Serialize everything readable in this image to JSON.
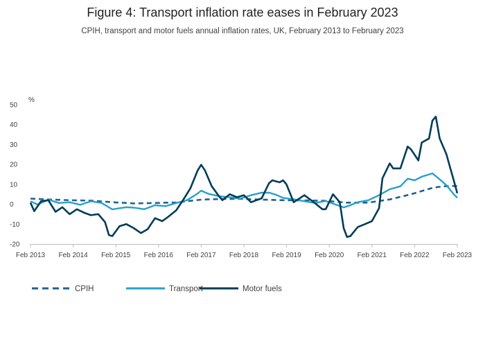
{
  "chart_data": {
    "type": "line",
    "title": "Figure 4: Transport inflation rate eases in February 2023",
    "subtitle": "CPIH, transport and motor fuels annual inflation rates, UK, February 2013 to February 2023",
    "ylabel": "%",
    "xlabel": "",
    "ylim": [
      -20,
      50
    ],
    "yticks": [
      -20,
      -10,
      0,
      10,
      20,
      30,
      40,
      50
    ],
    "xlim": [
      2013.083,
      2023.083
    ],
    "xticks": [
      {
        "value": 2013.083,
        "label": "Feb 2013"
      },
      {
        "value": 2014.083,
        "label": "Feb 2014"
      },
      {
        "value": 2015.083,
        "label": "Feb 2015"
      },
      {
        "value": 2016.083,
        "label": "Feb 2016"
      },
      {
        "value": 2017.083,
        "label": "Feb 2017"
      },
      {
        "value": 2018.083,
        "label": "Feb 2018"
      },
      {
        "value": 2019.083,
        "label": "Feb 2019"
      },
      {
        "value": 2020.083,
        "label": "Feb 2020"
      },
      {
        "value": 2021.083,
        "label": "Feb 2021"
      },
      {
        "value": 2022.083,
        "label": "Feb 2022"
      },
      {
        "value": 2023.083,
        "label": "Feb 2023"
      }
    ],
    "grid": false,
    "legend_position": "bottom-left",
    "series": [
      {
        "name": "CPIH",
        "color": "#206095",
        "dash": "dashed",
        "points": [
          [
            2013.083,
            2.8
          ],
          [
            2013.5,
            2.4
          ],
          [
            2014.0,
            2.0
          ],
          [
            2014.5,
            1.8
          ],
          [
            2015.0,
            1.0
          ],
          [
            2015.5,
            0.4
          ],
          [
            2016.0,
            0.6
          ],
          [
            2016.5,
            0.9
          ],
          [
            2017.083,
            2.3
          ],
          [
            2017.5,
            2.6
          ],
          [
            2018.0,
            2.7
          ],
          [
            2018.5,
            2.3
          ],
          [
            2019.0,
            2.0
          ],
          [
            2019.5,
            1.9
          ],
          [
            2020.0,
            1.7
          ],
          [
            2020.5,
            0.8
          ],
          [
            2021.0,
            0.8
          ],
          [
            2021.5,
            2.4
          ],
          [
            2022.0,
            5.0
          ],
          [
            2022.5,
            8.2
          ],
          [
            2022.75,
            9.0
          ],
          [
            2023.083,
            9.2
          ]
        ]
      },
      {
        "name": "Transport",
        "color": "#27a0cc",
        "dash": "solid",
        "points": [
          [
            2013.083,
            1.5
          ],
          [
            2013.25,
            -0.2
          ],
          [
            2013.5,
            2.3
          ],
          [
            2013.75,
            0.6
          ],
          [
            2014.0,
            1.0
          ],
          [
            2014.25,
            -0.3
          ],
          [
            2014.5,
            1.5
          ],
          [
            2014.75,
            0.6
          ],
          [
            2015.0,
            -2.6
          ],
          [
            2015.17,
            -2.0
          ],
          [
            2015.33,
            -1.5
          ],
          [
            2015.5,
            -1.7
          ],
          [
            2015.75,
            -2.5
          ],
          [
            2016.0,
            -0.5
          ],
          [
            2016.25,
            -1.0
          ],
          [
            2016.5,
            0.6
          ],
          [
            2016.75,
            2.0
          ],
          [
            2017.0,
            5.4
          ],
          [
            2017.083,
            6.8
          ],
          [
            2017.25,
            5.2
          ],
          [
            2017.5,
            4.0
          ],
          [
            2017.75,
            3.5
          ],
          [
            2018.0,
            2.8
          ],
          [
            2018.25,
            4.5
          ],
          [
            2018.5,
            5.8
          ],
          [
            2018.67,
            5.8
          ],
          [
            2018.83,
            4.8
          ],
          [
            2019.0,
            3.2
          ],
          [
            2019.25,
            2.5
          ],
          [
            2019.5,
            1.5
          ],
          [
            2019.75,
            0.6
          ],
          [
            2020.0,
            1.6
          ],
          [
            2020.25,
            -0.3
          ],
          [
            2020.42,
            -1.6
          ],
          [
            2020.58,
            -0.5
          ],
          [
            2020.75,
            1.0
          ],
          [
            2021.0,
            2.0
          ],
          [
            2021.25,
            4.5
          ],
          [
            2021.5,
            7.5
          ],
          [
            2021.75,
            9.0
          ],
          [
            2021.92,
            12.8
          ],
          [
            2022.083,
            12.0
          ],
          [
            2022.25,
            13.8
          ],
          [
            2022.5,
            15.5
          ],
          [
            2022.67,
            12.5
          ],
          [
            2022.83,
            9.5
          ],
          [
            2023.0,
            5.0
          ],
          [
            2023.083,
            3.2
          ]
        ]
      },
      {
        "name": "Motor fuels",
        "color": "#003c57",
        "dash": "solid",
        "points": [
          [
            2013.083,
            0.8
          ],
          [
            2013.17,
            -3.5
          ],
          [
            2013.33,
            1.5
          ],
          [
            2013.5,
            2.0
          ],
          [
            2013.67,
            -3.8
          ],
          [
            2013.83,
            -1.5
          ],
          [
            2014.0,
            -5.0
          ],
          [
            2014.17,
            -2.5
          ],
          [
            2014.33,
            -4.2
          ],
          [
            2014.5,
            -5.5
          ],
          [
            2014.67,
            -5.0
          ],
          [
            2014.83,
            -9.0
          ],
          [
            2014.92,
            -15.5
          ],
          [
            2015.0,
            -16.0
          ],
          [
            2015.17,
            -11.0
          ],
          [
            2015.33,
            -10.0
          ],
          [
            2015.5,
            -12.0
          ],
          [
            2015.67,
            -14.5
          ],
          [
            2015.83,
            -12.5
          ],
          [
            2016.0,
            -7.0
          ],
          [
            2016.17,
            -8.5
          ],
          [
            2016.33,
            -6.0
          ],
          [
            2016.5,
            -3.0
          ],
          [
            2016.67,
            2.5
          ],
          [
            2016.83,
            8.0
          ],
          [
            2017.0,
            17.0
          ],
          [
            2017.083,
            19.8
          ],
          [
            2017.17,
            17.0
          ],
          [
            2017.33,
            9.0
          ],
          [
            2017.5,
            4.0
          ],
          [
            2017.58,
            2.0
          ],
          [
            2017.75,
            5.0
          ],
          [
            2017.92,
            3.5
          ],
          [
            2018.083,
            4.5
          ],
          [
            2018.25,
            1.0
          ],
          [
            2018.5,
            3.0
          ],
          [
            2018.67,
            10.5
          ],
          [
            2018.75,
            12.0
          ],
          [
            2018.92,
            11.0
          ],
          [
            2019.0,
            12.0
          ],
          [
            2019.08,
            10.0
          ],
          [
            2019.25,
            1.0
          ],
          [
            2019.5,
            4.5
          ],
          [
            2019.75,
            0.5
          ],
          [
            2019.92,
            -2.5
          ],
          [
            2020.0,
            -2.5
          ],
          [
            2020.17,
            5.0
          ],
          [
            2020.33,
            1.0
          ],
          [
            2020.42,
            -12.0
          ],
          [
            2020.5,
            -16.5
          ],
          [
            2020.58,
            -16.0
          ],
          [
            2020.75,
            -11.5
          ],
          [
            2020.92,
            -10.0
          ],
          [
            2021.083,
            -8.5
          ],
          [
            2021.25,
            -2.0
          ],
          [
            2021.33,
            13.0
          ],
          [
            2021.5,
            20.5
          ],
          [
            2021.58,
            18.0
          ],
          [
            2021.75,
            18.0
          ],
          [
            2021.92,
            29.0
          ],
          [
            2022.0,
            27.5
          ],
          [
            2022.17,
            22.0
          ],
          [
            2022.25,
            31.0
          ],
          [
            2022.42,
            33.0
          ],
          [
            2022.5,
            42.0
          ],
          [
            2022.58,
            44.0
          ],
          [
            2022.67,
            33.0
          ],
          [
            2022.83,
            25.0
          ],
          [
            2022.92,
            18.0
          ],
          [
            2023.0,
            12.0
          ],
          [
            2023.083,
            5.5
          ]
        ]
      }
    ]
  }
}
